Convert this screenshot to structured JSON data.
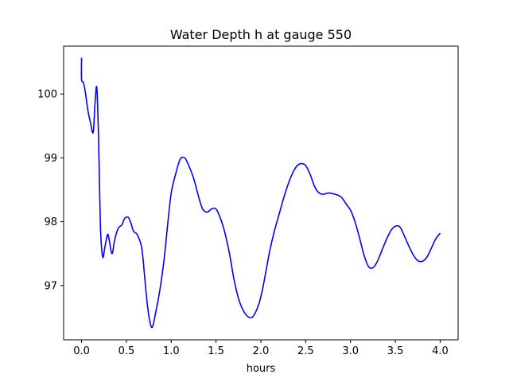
{
  "chart_data": {
    "type": "line",
    "title": "Water Depth h at gauge 550",
    "xlabel": "hours",
    "ylabel": "",
    "xlim": [
      -0.2,
      4.2
    ],
    "ylim": [
      96.15,
      100.75
    ],
    "xticks": [
      0.0,
      0.5,
      1.0,
      1.5,
      2.0,
      2.5,
      3.0,
      3.5,
      4.0
    ],
    "xtick_labels": [
      "0.0",
      "0.5",
      "1.0",
      "1.5",
      "2.0",
      "2.5",
      "3.0",
      "3.5",
      "4.0"
    ],
    "yticks": [
      97,
      98,
      99,
      100
    ],
    "ytick_labels": [
      "97",
      "98",
      "99",
      "100"
    ],
    "grid": false,
    "series": [
      {
        "color": "#0000ff",
        "x": [
          0.0,
          0.0,
          0.02,
          0.04,
          0.07,
          0.1,
          0.13,
          0.15,
          0.17,
          0.19,
          0.21,
          0.235,
          0.26,
          0.29,
          0.31,
          0.34,
          0.37,
          0.41,
          0.45,
          0.48,
          0.52,
          0.55,
          0.58,
          0.62,
          0.67,
          0.7,
          0.73,
          0.76,
          0.79,
          0.83,
          0.87,
          0.92,
          0.96,
          1.0,
          1.05,
          1.1,
          1.15,
          1.19,
          1.25,
          1.3,
          1.35,
          1.4,
          1.45,
          1.5,
          1.55,
          1.6,
          1.65,
          1.7,
          1.75,
          1.8,
          1.85,
          1.9,
          1.94,
          1.98,
          2.02,
          2.06,
          2.1,
          2.15,
          2.2,
          2.25,
          2.3,
          2.35,
          2.4,
          2.45,
          2.5,
          2.55,
          2.6,
          2.65,
          2.7,
          2.75,
          2.8,
          2.85,
          2.9,
          2.95,
          3.0,
          3.05,
          3.1,
          3.15,
          3.2,
          3.25,
          3.3,
          3.35,
          3.4,
          3.45,
          3.5,
          3.55,
          3.6,
          3.65,
          3.7,
          3.75,
          3.8,
          3.85,
          3.9,
          3.95,
          4.0
        ],
        "y": [
          100.57,
          100.23,
          100.18,
          100.05,
          99.75,
          99.55,
          99.4,
          99.85,
          100.1,
          99.3,
          97.95,
          97.45,
          97.6,
          97.8,
          97.7,
          97.5,
          97.72,
          97.9,
          97.95,
          98.05,
          98.07,
          97.98,
          97.85,
          97.8,
          97.6,
          97.2,
          96.75,
          96.45,
          96.35,
          96.6,
          96.9,
          97.4,
          97.95,
          98.45,
          98.75,
          98.98,
          99.0,
          98.9,
          98.68,
          98.42,
          98.2,
          98.15,
          98.2,
          98.2,
          98.05,
          97.82,
          97.5,
          97.1,
          96.8,
          96.62,
          96.52,
          96.5,
          96.58,
          96.72,
          96.95,
          97.25,
          97.55,
          97.85,
          98.1,
          98.35,
          98.57,
          98.75,
          98.87,
          98.91,
          98.88,
          98.74,
          98.55,
          98.45,
          98.43,
          98.45,
          98.44,
          98.42,
          98.38,
          98.28,
          98.18,
          98.0,
          97.75,
          97.48,
          97.3,
          97.28,
          97.38,
          97.55,
          97.72,
          97.86,
          97.93,
          97.92,
          97.78,
          97.62,
          97.48,
          97.39,
          97.38,
          97.44,
          97.58,
          97.73,
          97.82
        ]
      }
    ]
  }
}
